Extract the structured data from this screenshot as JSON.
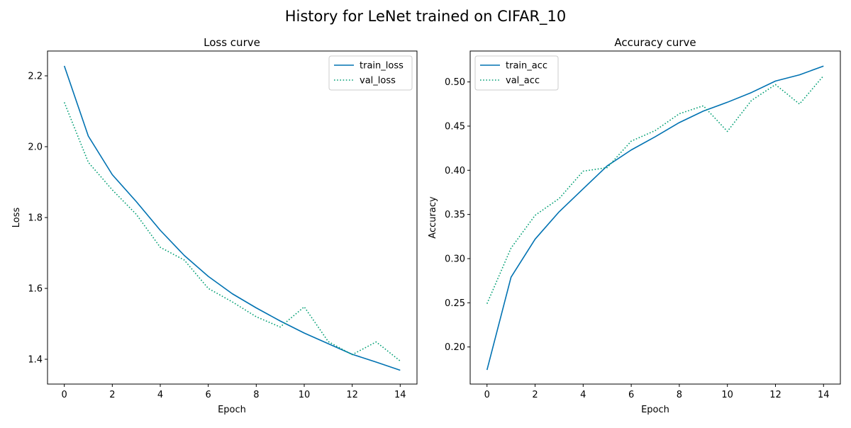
{
  "figure": {
    "title": "History for LeNet trained on CIFAR_10"
  },
  "chart_data": [
    {
      "type": "line",
      "title": "Loss curve",
      "xlabel": "Epoch",
      "ylabel": "Loss",
      "x": [
        0,
        1,
        2,
        3,
        4,
        5,
        6,
        7,
        8,
        9,
        10,
        11,
        12,
        13,
        14
      ],
      "xlim": [
        -0.7,
        14.7
      ],
      "ylim": [
        1.33,
        2.27
      ],
      "xticks": [
        0,
        2,
        4,
        6,
        8,
        10,
        12,
        14
      ],
      "yticks": [
        1.4,
        1.6,
        1.8,
        2.0,
        2.2
      ],
      "xtick_labels": [
        "0",
        "2",
        "4",
        "6",
        "8",
        "10",
        "12",
        "14"
      ],
      "ytick_labels": [
        "1.4",
        "1.6",
        "1.8",
        "2.0",
        "2.2"
      ],
      "legend_position": "upper right",
      "grid": false,
      "series": [
        {
          "name": "train_loss",
          "style": "solid",
          "color": "#0072b2",
          "values": [
            2.228,
            2.03,
            1.921,
            1.845,
            1.764,
            1.693,
            1.634,
            1.585,
            1.545,
            1.508,
            1.474,
            1.444,
            1.414,
            1.392,
            1.369
          ]
        },
        {
          "name": "val_loss",
          "style": "dotted",
          "color": "#009e73",
          "values": [
            2.125,
            1.956,
            1.878,
            1.809,
            1.716,
            1.68,
            1.6,
            1.562,
            1.52,
            1.491,
            1.548,
            1.45,
            1.413,
            1.449,
            1.395
          ]
        }
      ]
    },
    {
      "type": "line",
      "title": "Accuracy curve",
      "xlabel": "Epoch",
      "ylabel": "Accuracy",
      "x": [
        0,
        1,
        2,
        3,
        4,
        5,
        6,
        7,
        8,
        9,
        10,
        11,
        12,
        13,
        14
      ],
      "xlim": [
        -0.7,
        14.7
      ],
      "ylim": [
        0.158,
        0.535
      ],
      "xticks": [
        0,
        2,
        4,
        6,
        8,
        10,
        12,
        14
      ],
      "yticks": [
        0.2,
        0.25,
        0.3,
        0.35,
        0.4,
        0.45,
        0.5
      ],
      "xtick_labels": [
        "0",
        "2",
        "4",
        "6",
        "8",
        "10",
        "12",
        "14"
      ],
      "ytick_labels": [
        "0.20",
        "0.25",
        "0.30",
        "0.35",
        "0.40",
        "0.45",
        "0.50"
      ],
      "legend_position": "upper left",
      "grid": false,
      "series": [
        {
          "name": "train_acc",
          "style": "solid",
          "color": "#0072b2",
          "values": [
            0.174,
            0.279,
            0.322,
            0.353,
            0.379,
            0.405,
            0.423,
            0.438,
            0.454,
            0.467,
            0.477,
            0.488,
            0.501,
            0.508,
            0.518
          ]
        },
        {
          "name": "val_acc",
          "style": "dotted",
          "color": "#009e73",
          "values": [
            0.249,
            0.312,
            0.349,
            0.368,
            0.399,
            0.403,
            0.433,
            0.445,
            0.464,
            0.473,
            0.444,
            0.479,
            0.497,
            0.475,
            0.507
          ]
        }
      ]
    }
  ]
}
